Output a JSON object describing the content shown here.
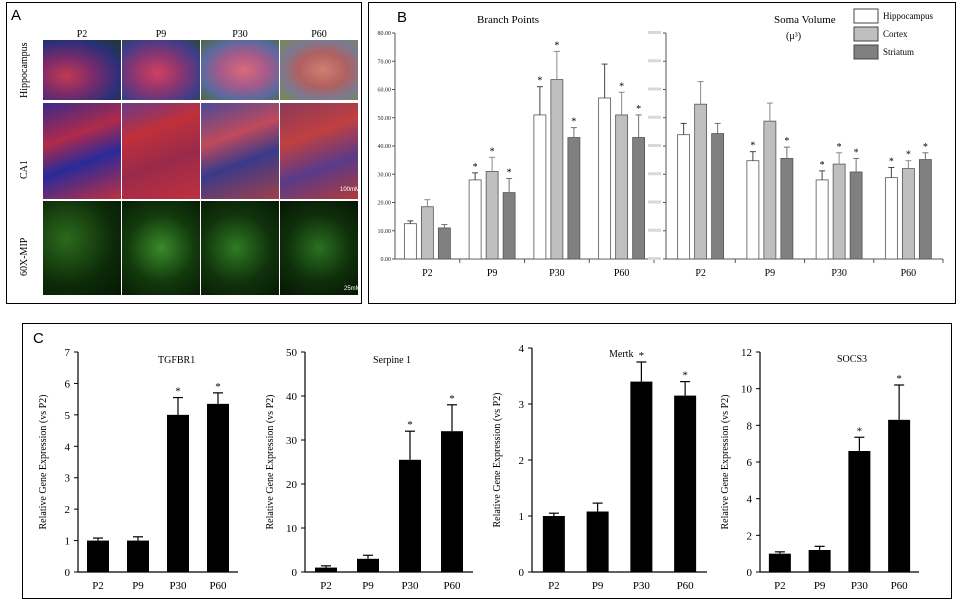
{
  "panel_a": {
    "label": "A",
    "columns": [
      "P2",
      "P9",
      "P30",
      "P60"
    ],
    "rows": [
      "Hippocampus",
      "CA1",
      "60X-MIP"
    ],
    "scale_ca1": "100mM",
    "scale_mip": "25mM"
  },
  "panel_b": {
    "label": "B",
    "legend": [
      "Hippocampus",
      "Cortex",
      "Striatum"
    ],
    "colors": {
      "Hippocampus": "#ffffff",
      "Cortex": "#bfbfbf",
      "Striatum": "#808080"
    }
  },
  "panel_c": {
    "label": "C"
  },
  "chart_data": [
    {
      "type": "bar",
      "title": "Branch Points",
      "categories": [
        "P2",
        "P9",
        "P30",
        "P60"
      ],
      "ylim": [
        0,
        80
      ],
      "yticks": [
        "0.00",
        "10.00",
        "20.00",
        "30.00",
        "40.00",
        "50.00",
        "60.00",
        "70.00",
        "80.00"
      ],
      "series": [
        {
          "name": "Hippocampus",
          "values": [
            12.5,
            28,
            51,
            57
          ],
          "errors": [
            1,
            2.5,
            10,
            12
          ],
          "sig": [
            false,
            true,
            true,
            false
          ]
        },
        {
          "name": "Cortex",
          "values": [
            18.5,
            31,
            63.5,
            51
          ],
          "errors": [
            2.5,
            5,
            10,
            8
          ],
          "sig": [
            false,
            true,
            true,
            true
          ]
        },
        {
          "name": "Striatum",
          "values": [
            11,
            23.5,
            43,
            43
          ],
          "errors": [
            1.2,
            5,
            3.5,
            8
          ],
          "sig": [
            false,
            true,
            true,
            true
          ]
        }
      ]
    },
    {
      "type": "bar",
      "title": "Soma Volume",
      "unit": "(μ³)",
      "categories": [
        "P2",
        "P9",
        "P30",
        "P60"
      ],
      "ylim": [
        0,
        100
      ],
      "series": [
        {
          "name": "Hippocampus",
          "values": [
            55,
            43.5,
            35,
            36
          ],
          "errors": [
            5,
            4,
            4,
            4.5
          ],
          "sig": [
            false,
            true,
            true,
            true
          ]
        },
        {
          "name": "Cortex",
          "values": [
            68.5,
            61,
            42,
            40
          ],
          "errors": [
            10,
            8,
            5,
            3.5
          ],
          "sig": [
            false,
            false,
            true,
            true
          ]
        },
        {
          "name": "Striatum",
          "values": [
            55.5,
            44.5,
            38.5,
            44
          ],
          "errors": [
            4.5,
            5,
            6,
            3
          ],
          "sig": [
            false,
            true,
            true,
            true
          ]
        }
      ]
    },
    {
      "type": "bar",
      "title": "TGFBR1",
      "ylabel": "Relative Gene Expression (vs P2)",
      "categories": [
        "P2",
        "P9",
        "P30",
        "P60"
      ],
      "yticks": [
        0,
        1,
        2,
        3,
        4,
        5,
        6,
        7
      ],
      "ylim": [
        0,
        7
      ],
      "values": [
        1.0,
        1.0,
        5.0,
        5.35
      ],
      "errors": [
        0.08,
        0.12,
        0.55,
        0.35
      ],
      "sig": [
        false,
        false,
        true,
        true
      ]
    },
    {
      "type": "bar",
      "title": "Serpine 1",
      "ylabel": "Relative Gene Expression (vs P2)",
      "categories": [
        "P2",
        "P9",
        "P30",
        "P60"
      ],
      "yticks": [
        0,
        10,
        20,
        30,
        40,
        50
      ],
      "ylim": [
        0,
        50
      ],
      "values": [
        1.0,
        3.0,
        25.5,
        32
      ],
      "errors": [
        0.4,
        0.8,
        6.5,
        6
      ],
      "sig": [
        false,
        false,
        true,
        true
      ]
    },
    {
      "type": "bar",
      "title": "Mertk",
      "ylabel": "Relative Gene Expression (vs P2)",
      "categories": [
        "P2",
        "P9",
        "P30",
        "P60"
      ],
      "yticks": [
        0,
        1,
        2,
        3,
        4
      ],
      "ylim": [
        0,
        4
      ],
      "values": [
        1.0,
        1.08,
        3.4,
        3.15
      ],
      "errors": [
        0.05,
        0.15,
        0.35,
        0.25
      ],
      "sig": [
        false,
        false,
        true,
        true
      ]
    },
    {
      "type": "bar",
      "title": "SOCS3",
      "ylabel": "Relative Gene Expression (vs P2)",
      "categories": [
        "P2",
        "P9",
        "P30",
        "P60"
      ],
      "yticks": [
        0,
        2,
        4,
        6,
        8,
        10,
        12
      ],
      "ylim": [
        0,
        12
      ],
      "values": [
        1.0,
        1.2,
        6.6,
        8.3
      ],
      "errors": [
        0.1,
        0.2,
        0.75,
        1.9
      ],
      "sig": [
        false,
        false,
        true,
        true
      ]
    }
  ]
}
